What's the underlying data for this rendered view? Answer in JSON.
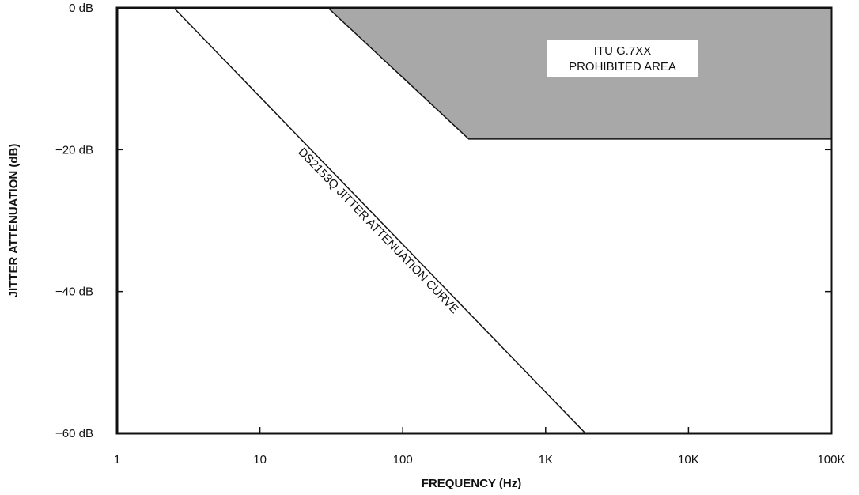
{
  "chart_data": {
    "type": "line",
    "xlabel": "FREQUENCY (Hz)",
    "ylabel": "JITTER ATTENUATION (dB)",
    "x_scale": "log",
    "xlim": [
      1,
      100000
    ],
    "ylim": [
      -60,
      0
    ],
    "x_ticks": [
      1,
      10,
      100,
      1000,
      10000,
      100000
    ],
    "x_tick_labels": [
      "1",
      "10",
      "100",
      "1K",
      "10K",
      "100K"
    ],
    "y_ticks": [
      0,
      -20,
      -40,
      -60
    ],
    "y_tick_labels": [
      "0 dB",
      "−20 dB",
      "−40 dB",
      "−60 dB"
    ],
    "grid": false,
    "series": [
      {
        "name": "DS2153Q JITTER ATTENUATION CURVE",
        "x": [
          2.5,
          1900
        ],
        "y": [
          0,
          -60
        ]
      }
    ],
    "regions": [
      {
        "name": "ITU G.7XX PROHIBITED AREA",
        "label_lines": [
          "ITU G.7XX",
          "PROHIBITED AREA"
        ],
        "fill": "#a8a8a8",
        "boundary": [
          {
            "x": 30,
            "y": 0
          },
          {
            "x": 290,
            "y": -18.5
          },
          {
            "x": 100000,
            "y": -18.5
          },
          {
            "x": 100000,
            "y": 0
          }
        ]
      }
    ]
  }
}
